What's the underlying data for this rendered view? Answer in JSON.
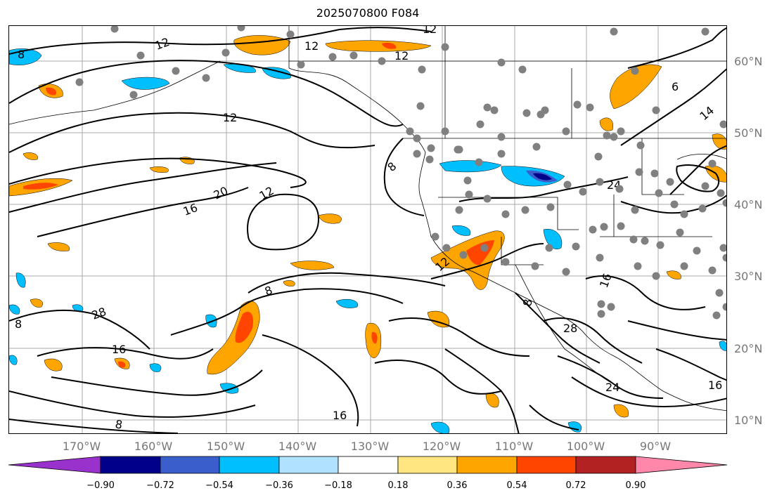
{
  "title": "2025070800 F084",
  "latitude_labels": [
    "60°N",
    "50°N",
    "40°N",
    "30°N",
    "20°N",
    "10°N"
  ],
  "longitude_labels": [
    "170°W",
    "160°W",
    "150°W",
    "140°W",
    "130°W",
    "120°W",
    "110°W",
    "100°W",
    "90°W"
  ],
  "contour_labels": [
    "12",
    "12",
    "12",
    "12",
    "20",
    "16",
    "12",
    "8",
    "8",
    "12",
    "12",
    "8",
    "16",
    "8",
    "28",
    "24",
    "24",
    "16",
    "16",
    "28",
    "6",
    "14",
    "16",
    "8",
    "8"
  ],
  "colorbar": {
    "ticks": [
      "−0.90",
      "−0.72",
      "−0.54",
      "−0.36",
      "−0.18",
      "0.18",
      "0.36",
      "0.54",
      "0.72",
      "0.90"
    ],
    "colors": [
      "#9932cc",
      "#00008b",
      "#3a5fcd",
      "#00bfff",
      "#b0e2ff",
      "#ffffff",
      "#ffe680",
      "#ffa500",
      "#ff4500",
      "#b22222",
      "#ff88aa"
    ]
  },
  "station_marker_color": "#808080",
  "contour_color": "#000000",
  "gridline_color": "#aaaaaa"
}
